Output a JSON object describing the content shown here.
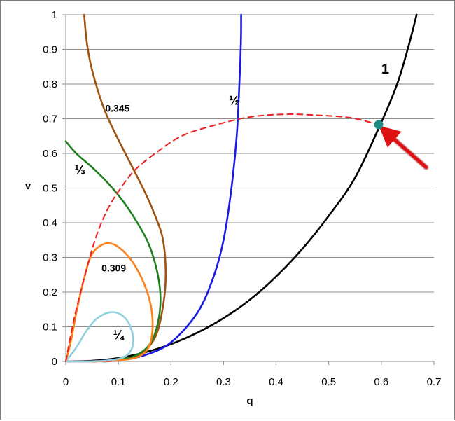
{
  "chart_data": {
    "type": "line",
    "title": "",
    "xlabel": "q",
    "ylabel": "v",
    "xlim": [
      0,
      0.7
    ],
    "ylim": [
      0,
      1
    ],
    "xticks": [
      "0",
      "0.1",
      "0.2",
      "0.3",
      "0.4",
      "0.5",
      "0.6",
      "0.7"
    ],
    "yticks": [
      "0",
      "0.1",
      "0.2",
      "0.3",
      "0.4",
      "0.5",
      "0.6",
      "0.7",
      "0.8",
      "0.9",
      "1"
    ],
    "grid": "horizontal",
    "series": [
      {
        "name": "1",
        "color": "#000000",
        "style": "solid",
        "points": [
          [
            0.0,
            0.0
          ],
          [
            0.05,
            0.002
          ],
          [
            0.1,
            0.01
          ],
          [
            0.15,
            0.026
          ],
          [
            0.2,
            0.05
          ],
          [
            0.25,
            0.083
          ],
          [
            0.3,
            0.125
          ],
          [
            0.35,
            0.178
          ],
          [
            0.4,
            0.245
          ],
          [
            0.45,
            0.325
          ],
          [
            0.5,
            0.42
          ],
          [
            0.55,
            0.53
          ],
          [
            0.6,
            0.69
          ],
          [
            0.63,
            0.8
          ],
          [
            0.65,
            0.9
          ],
          [
            0.667,
            1.0
          ]
        ]
      },
      {
        "name": "½",
        "color": "#1a1ae6",
        "style": "solid",
        "points": [
          [
            0.07,
            0.0
          ],
          [
            0.1,
            0.003
          ],
          [
            0.15,
            0.018
          ],
          [
            0.2,
            0.055
          ],
          [
            0.25,
            0.14
          ],
          [
            0.28,
            0.24
          ],
          [
            0.3,
            0.35
          ],
          [
            0.315,
            0.5
          ],
          [
            0.325,
            0.65
          ],
          [
            0.33,
            0.8
          ],
          [
            0.333,
            0.92
          ],
          [
            0.3335,
            1.0
          ]
        ]
      },
      {
        "name": "0.345",
        "color": "#a0520f",
        "style": "solid",
        "points": [
          [
            0.035,
            1.0
          ],
          [
            0.04,
            0.92
          ],
          [
            0.05,
            0.84
          ],
          [
            0.07,
            0.74
          ],
          [
            0.09,
            0.67
          ],
          [
            0.12,
            0.58
          ],
          [
            0.15,
            0.49
          ],
          [
            0.17,
            0.42
          ],
          [
            0.185,
            0.35
          ],
          [
            0.19,
            0.25
          ],
          [
            0.185,
            0.16
          ],
          [
            0.17,
            0.07
          ],
          [
            0.14,
            0.02
          ],
          [
            0.1,
            0.005
          ],
          [
            0.05,
            0.0
          ]
        ]
      },
      {
        "name": "⅓",
        "color": "#1f7f1f",
        "style": "solid",
        "points": [
          [
            0.0,
            0.635
          ],
          [
            0.02,
            0.6
          ],
          [
            0.05,
            0.56
          ],
          [
            0.08,
            0.515
          ],
          [
            0.11,
            0.46
          ],
          [
            0.14,
            0.39
          ],
          [
            0.16,
            0.33
          ],
          [
            0.175,
            0.25
          ],
          [
            0.18,
            0.18
          ],
          [
            0.175,
            0.11
          ],
          [
            0.16,
            0.05
          ],
          [
            0.13,
            0.015
          ],
          [
            0.09,
            0.003
          ],
          [
            0.05,
            0.0
          ]
        ]
      },
      {
        "name": "0.309",
        "color": "#ff7f1a",
        "style": "solid",
        "points": [
          [
            0.0,
            0.0
          ],
          [
            0.01,
            0.06
          ],
          [
            0.02,
            0.14
          ],
          [
            0.035,
            0.24
          ],
          [
            0.05,
            0.31
          ],
          [
            0.075,
            0.34
          ],
          [
            0.1,
            0.33
          ],
          [
            0.13,
            0.28
          ],
          [
            0.155,
            0.2
          ],
          [
            0.165,
            0.12
          ],
          [
            0.16,
            0.05
          ],
          [
            0.14,
            0.015
          ],
          [
            0.1,
            0.003
          ],
          [
            0.05,
            0.0
          ],
          [
            0.0,
            0.0
          ]
        ]
      },
      {
        "name": "¼",
        "color": "#8fd0dd",
        "style": "solid",
        "points": [
          [
            0.0,
            0.0
          ],
          [
            0.02,
            0.04
          ],
          [
            0.04,
            0.09
          ],
          [
            0.06,
            0.125
          ],
          [
            0.085,
            0.142
          ],
          [
            0.105,
            0.135
          ],
          [
            0.12,
            0.11
          ],
          [
            0.128,
            0.07
          ],
          [
            0.125,
            0.035
          ],
          [
            0.11,
            0.012
          ],
          [
            0.08,
            0.003
          ],
          [
            0.04,
            0.0
          ],
          [
            0.0,
            0.0
          ]
        ]
      },
      {
        "name": "",
        "color": "#ee2222",
        "style": "dashed",
        "points": [
          [
            0.0,
            0.0
          ],
          [
            0.01,
            0.08
          ],
          [
            0.02,
            0.15
          ],
          [
            0.04,
            0.27
          ],
          [
            0.06,
            0.37
          ],
          [
            0.08,
            0.44
          ],
          [
            0.1,
            0.49
          ],
          [
            0.13,
            0.55
          ],
          [
            0.17,
            0.6
          ],
          [
            0.22,
            0.65
          ],
          [
            0.28,
            0.68
          ],
          [
            0.35,
            0.705
          ],
          [
            0.42,
            0.713
          ],
          [
            0.48,
            0.71
          ],
          [
            0.53,
            0.705
          ],
          [
            0.56,
            0.697
          ],
          [
            0.595,
            0.683
          ]
        ]
      }
    ],
    "labels": [
      {
        "text": "1",
        "x": 0.6,
        "y": 0.83,
        "size": 20
      },
      {
        "text": "½",
        "x": 0.31,
        "y": 0.74,
        "size": 18
      },
      {
        "text": "0.345",
        "x": 0.075,
        "y": 0.72,
        "size": 14
      },
      {
        "text": "⅓",
        "x": 0.017,
        "y": 0.54,
        "size": 18
      },
      {
        "text": "0.309",
        "x": 0.068,
        "y": 0.26,
        "size": 14
      },
      {
        "text": "¼",
        "x": 0.09,
        "y": 0.065,
        "size": 18
      }
    ],
    "marker": {
      "x": 0.595,
      "y": 0.683,
      "color": "#1b8b86"
    },
    "arrow": {
      "color": "#dd1111",
      "from": [
        0.685,
        0.56
      ],
      "to": [
        0.61,
        0.66
      ]
    }
  }
}
